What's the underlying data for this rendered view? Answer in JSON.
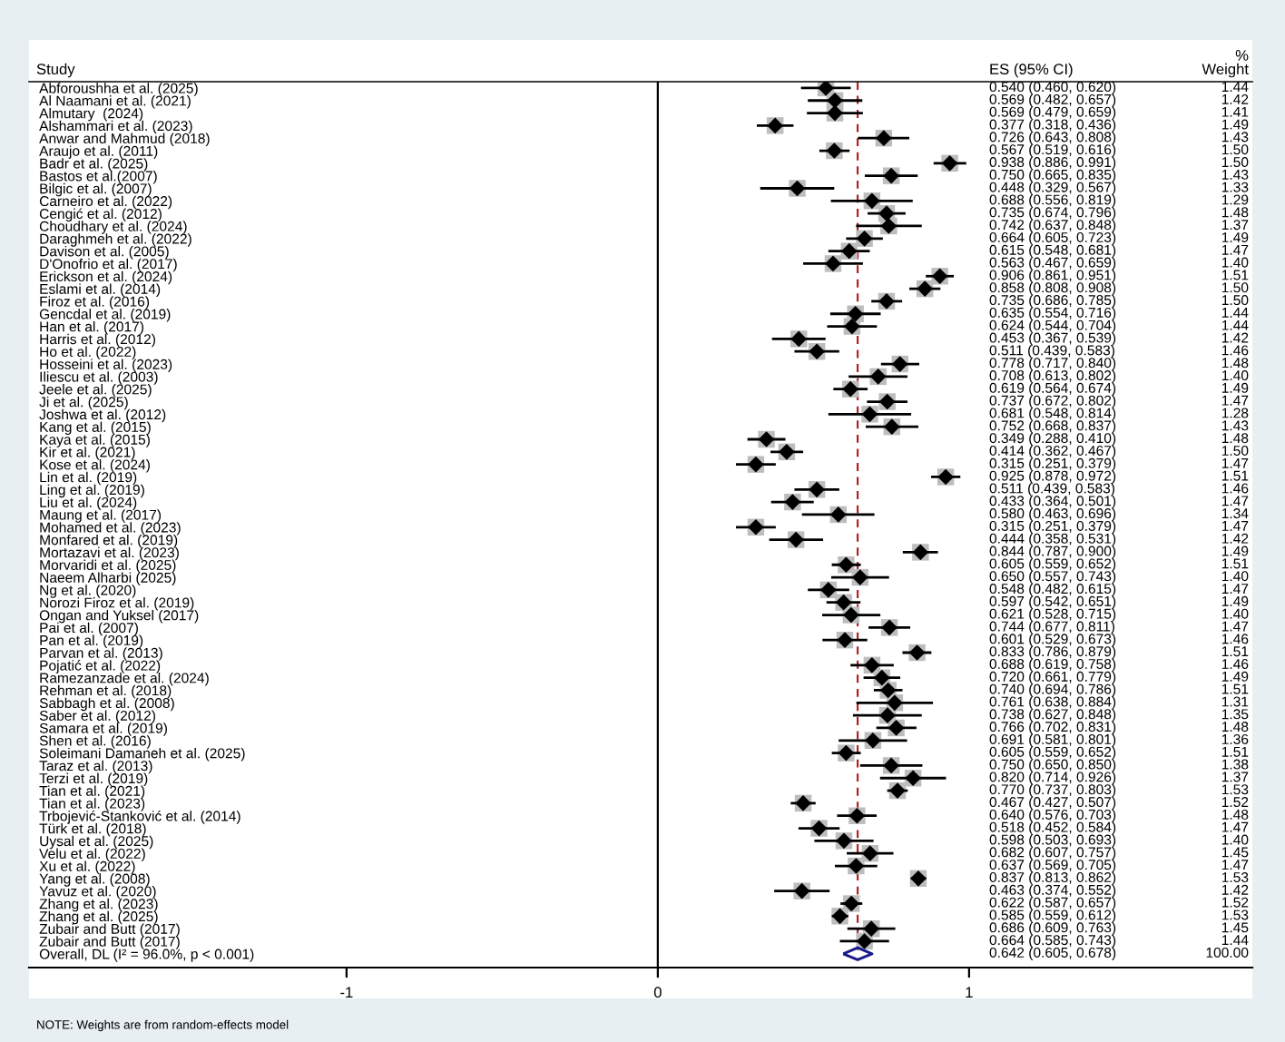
{
  "chart_data": {
    "type": "scatter",
    "orientation": "horizontal",
    "ylabel": "Study",
    "annotations": [
      "ES (95% CI)",
      "%",
      "Weight",
      "NOTE: Weights are from random-effects model",
      "0.540 (0.460, 0.620)",
      "0.569 (0.482, 0.657)",
      "0.569 (0.479, 0.659)",
      "0.377 (0.318, 0.436)",
      "0.726 (0.643, 0.808)",
      "0.567 (0.519, 0.616)",
      "0.938 (0.886, 0.991)",
      "0.750 (0.665, 0.835)",
      "0.448 (0.329, 0.567)",
      "0.688 (0.556, 0.819)",
      "0.735 (0.674, 0.796)",
      "0.742 (0.637, 0.848)",
      "0.664 (0.605, 0.723)",
      "0.615 (0.548, 0.681)",
      "0.563 (0.467, 0.659)",
      "0.906 (0.861, 0.951)",
      "0.858 (0.808, 0.908)",
      "0.735 (0.686, 0.785)",
      "0.635 (0.554, 0.716)",
      "0.624 (0.544, 0.704)",
      "0.453 (0.367, 0.539)",
      "0.511 (0.439, 0.583)",
      "0.778 (0.717, 0.840)",
      "0.708 (0.613, 0.802)",
      "0.619 (0.564, 0.674)",
      "0.737 (0.672, 0.802)",
      "0.681 (0.548, 0.814)",
      "0.752 (0.668, 0.837)",
      "0.349 (0.288, 0.410)",
      "0.414 (0.362, 0.467)",
      "0.315 (0.251, 0.379)",
      "0.925 (0.878, 0.972)",
      "0.511 (0.439, 0.583)",
      "0.433 (0.364, 0.501)",
      "0.580 (0.463, 0.696)",
      "0.315 (0.251, 0.379)",
      "0.444 (0.358, 0.531)",
      "0.844 (0.787, 0.900)",
      "0.605 (0.559, 0.652)",
      "0.650 (0.557, 0.743)",
      "0.548 (0.482, 0.615)",
      "0.597 (0.542, 0.651)",
      "0.621 (0.528, 0.715)",
      "0.744 (0.677, 0.811)",
      "0.601 (0.529, 0.673)",
      "0.833 (0.786, 0.879)",
      "0.688 (0.619, 0.758)",
      "0.720 (0.661, 0.779)",
      "0.740 (0.694, 0.786)",
      "0.761 (0.638, 0.884)",
      "0.738 (0.627, 0.848)",
      "0.766 (0.702, 0.831)",
      "0.691 (0.581, 0.801)",
      "0.605 (0.559, 0.652)",
      "0.750 (0.650, 0.850)",
      "0.820 (0.714, 0.926)",
      "0.770 (0.737, 0.803)",
      "0.467 (0.427, 0.507)",
      "0.640 (0.576, 0.703)",
      "0.518 (0.452, 0.584)",
      "0.598 (0.503, 0.693)",
      "0.682 (0.607, 0.757)",
      "0.637 (0.569, 0.705)",
      "0.837 (0.813, 0.862)",
      "0.463 (0.374, 0.552)",
      "0.622 (0.587, 0.657)",
      "0.585 (0.559, 0.612)",
      "0.686 (0.609, 0.763)",
      "0.664 (0.585, 0.743)",
      "0.642 (0.605, 0.678)",
      "1.44",
      "1.42",
      "1.41",
      "1.49",
      "1.43",
      "1.50",
      "1.50",
      "1.43",
      "1.33",
      "1.29",
      "1.48",
      "1.37",
      "1.49",
      "1.47",
      "1.40",
      "1.51",
      "1.50",
      "1.50",
      "1.44",
      "1.44",
      "1.42",
      "1.46",
      "1.48",
      "1.40",
      "1.49",
      "1.47",
      "1.28",
      "1.43",
      "1.48",
      "1.50",
      "1.47",
      "1.51",
      "1.46",
      "1.47",
      "1.34",
      "1.47",
      "1.42",
      "1.49",
      "1.51",
      "1.40",
      "1.47",
      "1.49",
      "1.40",
      "1.47",
      "1.46",
      "1.51",
      "1.46",
      "1.49",
      "1.51",
      "1.31",
      "1.35",
      "1.48",
      "1.36",
      "1.51",
      "1.38",
      "1.37",
      "1.53",
      "1.52",
      "1.48",
      "1.47",
      "1.40",
      "1.45",
      "1.47",
      "1.53",
      "1.42",
      "1.52",
      "1.53",
      "1.45",
      "1.44",
      "100.00"
    ],
    "categories": [
      "Abforoushha et al. (2025)",
      "Al Naamani et al. (2021)",
      "Almutary  (2024)",
      "Alshammari et al. (2023)",
      "Anwar and Mahmud (2018)",
      "Araujo et al. (2011)",
      "Badr et al. (2025)",
      "Bastos et al.(2007)",
      "Bilgic et al. (2007)",
      "Carneiro et al. (2022)",
      "Cengić et al. (2012)",
      "Choudhary et al. (2024)",
      "Daraghmeh et al. (2022)",
      "Davison et al. (2005)",
      "D'Onofrio et al. (2017)",
      "Erickson et al. (2024)",
      "Eslami et al. (2014)",
      "Firoz et al. (2016)",
      "Gencdal et al. (2019)",
      "Han et al. (2017)",
      "Harris et al. (2012)",
      "Ho et al. (2022)",
      "Hosseini et al. (2023)",
      "Iliescu et al. (2003)",
      "Jeele et al. (2025)",
      "Ji et al. (2025)",
      "Joshwa et al. (2012)",
      "Kang et al. (2015)",
      "Kaya et al. (2015)",
      "Kir et al. (2021)",
      "Kose et al. (2024)",
      "Lin et al. (2019)",
      "Ling et al. (2019)",
      "Liu et al. (2024)",
      "Maung et al. (2017)",
      "Mohamed et al. (2023)",
      "Monfared et al. (2019)",
      "Mortazavi et al. (2023)",
      "Morvaridi et al. (2025)",
      "Naeem Alharbi (2025)",
      "Ng et al. (2020)",
      "Norozi Firoz et al. (2019)",
      "Ongan and Yuksel (2017)",
      "Pai et al. (2007)",
      "Pan et al. (2019)",
      "Parvan et al. (2013)",
      "Pojatić et al. (2022)",
      "Ramezanzade et al. (2024)",
      "Rehman et al. (2018)",
      "Sabbagh et al. (2008)",
      "Saber et al. (2012)",
      "Samara et al. (2019)",
      "Shen et al. (2016)",
      "Soleimani Damaneh et al. (2025)",
      "Taraz et al. (2013)",
      "Terzi et al. (2019)",
      "Tian et al. (2021)",
      "Tian et al. (2023)",
      "Trbojević-Stanković et al. (2014)",
      "Türk et al. (2018)",
      "Uysal et al. (2025)",
      "Velu et al. (2022)",
      "Xu et al. (2022)",
      "Yang et al. (2008)",
      "Yavuz et al. (2020)",
      "Zhang et al. (2023)",
      "Zhang et al. (2025)",
      "Zubair and Butt (2017)",
      "Zubair and Butt (2017)",
      "Overall, DL (I² = 96.0%, p < 0.001)"
    ],
    "series": [
      {
        "marker": "diamond",
        "color": "#000000",
        "values": [
          0.54,
          0.569,
          0.569,
          0.377,
          0.726,
          0.567,
          0.938,
          0.75,
          0.448,
          0.688,
          0.735,
          0.742,
          0.664,
          0.615,
          0.563,
          0.906,
          0.858,
          0.735,
          0.635,
          0.624,
          0.453,
          0.511,
          0.778,
          0.708,
          0.619,
          0.737,
          0.681,
          0.752,
          0.349,
          0.414,
          0.315,
          0.925,
          0.511,
          0.433,
          0.58,
          0.315,
          0.444,
          0.844,
          0.605,
          0.65,
          0.548,
          0.597,
          0.621,
          0.744,
          0.601,
          0.833,
          0.688,
          0.72,
          0.74,
          0.761,
          0.738,
          0.766,
          0.691,
          0.605,
          0.75,
          0.82,
          0.77,
          0.467,
          0.64,
          0.518,
          0.598,
          0.682,
          0.637,
          0.837,
          0.463,
          0.622,
          0.585,
          0.686,
          0.664,
          null
        ],
        "errors": [
          [
            0.46,
            0.62
          ],
          [
            0.482,
            0.657
          ],
          [
            0.479,
            0.659
          ],
          [
            0.318,
            0.436
          ],
          [
            0.643,
            0.808
          ],
          [
            0.519,
            0.616
          ],
          [
            0.886,
            0.991
          ],
          [
            0.665,
            0.835
          ],
          [
            0.329,
            0.567
          ],
          [
            0.556,
            0.819
          ],
          [
            0.674,
            0.796
          ],
          [
            0.637,
            0.848
          ],
          [
            0.605,
            0.723
          ],
          [
            0.548,
            0.681
          ],
          [
            0.467,
            0.659
          ],
          [
            0.861,
            0.951
          ],
          [
            0.808,
            0.908
          ],
          [
            0.686,
            0.785
          ],
          [
            0.554,
            0.716
          ],
          [
            0.544,
            0.704
          ],
          [
            0.367,
            0.539
          ],
          [
            0.439,
            0.583
          ],
          [
            0.717,
            0.84
          ],
          [
            0.613,
            0.802
          ],
          [
            0.564,
            0.674
          ],
          [
            0.672,
            0.802
          ],
          [
            0.548,
            0.814
          ],
          [
            0.668,
            0.837
          ],
          [
            0.288,
            0.41
          ],
          [
            0.362,
            0.467
          ],
          [
            0.251,
            0.379
          ],
          [
            0.878,
            0.972
          ],
          [
            0.439,
            0.583
          ],
          [
            0.364,
            0.501
          ],
          [
            0.463,
            0.696
          ],
          [
            0.251,
            0.379
          ],
          [
            0.358,
            0.531
          ],
          [
            0.787,
            0.9
          ],
          [
            0.559,
            0.652
          ],
          [
            0.557,
            0.743
          ],
          [
            0.482,
            0.615
          ],
          [
            0.542,
            0.651
          ],
          [
            0.528,
            0.715
          ],
          [
            0.677,
            0.811
          ],
          [
            0.529,
            0.673
          ],
          [
            0.786,
            0.879
          ],
          [
            0.619,
            0.758
          ],
          [
            0.661,
            0.779
          ],
          [
            0.694,
            0.786
          ],
          [
            0.638,
            0.884
          ],
          [
            0.627,
            0.848
          ],
          [
            0.702,
            0.831
          ],
          [
            0.581,
            0.801
          ],
          [
            0.559,
            0.652
          ],
          [
            0.65,
            0.85
          ],
          [
            0.714,
            0.926
          ],
          [
            0.737,
            0.803
          ],
          [
            0.427,
            0.507
          ],
          [
            0.576,
            0.703
          ],
          [
            0.452,
            0.584
          ],
          [
            0.503,
            0.693
          ],
          [
            0.607,
            0.757
          ],
          [
            0.569,
            0.705
          ],
          [
            0.813,
            0.862
          ],
          [
            0.374,
            0.552
          ],
          [
            0.587,
            0.657
          ],
          [
            0.559,
            0.612
          ],
          [
            0.609,
            0.763
          ],
          [
            0.585,
            0.743
          ],
          null
        ]
      },
      {
        "marker": "diamond",
        "color": "#1a1a8c",
        "values": [
          null,
          null,
          null,
          null,
          null,
          null,
          null,
          null,
          null,
          null,
          null,
          null,
          null,
          null,
          null,
          null,
          null,
          null,
          null,
          null,
          null,
          null,
          null,
          null,
          null,
          null,
          null,
          null,
          null,
          null,
          null,
          null,
          null,
          null,
          null,
          null,
          null,
          null,
          null,
          null,
          null,
          null,
          null,
          null,
          null,
          null,
          null,
          null,
          null,
          null,
          null,
          null,
          null,
          null,
          null,
          null,
          null,
          null,
          null,
          null,
          null,
          null,
          null,
          null,
          null,
          null,
          null,
          null,
          null,
          0.642
        ]
      }
    ],
    "xlim": [
      -2.02,
      1.91
    ],
    "xticks": [
      -1,
      0,
      1
    ],
    "ref_lines": [
      {
        "axis": "x",
        "value": 0,
        "color": "#000000",
        "line_style": "solid"
      },
      {
        "axis": "x",
        "value": 0.642,
        "color": "#b22222",
        "line_style": "dashed"
      }
    ],
    "grid": false
  }
}
